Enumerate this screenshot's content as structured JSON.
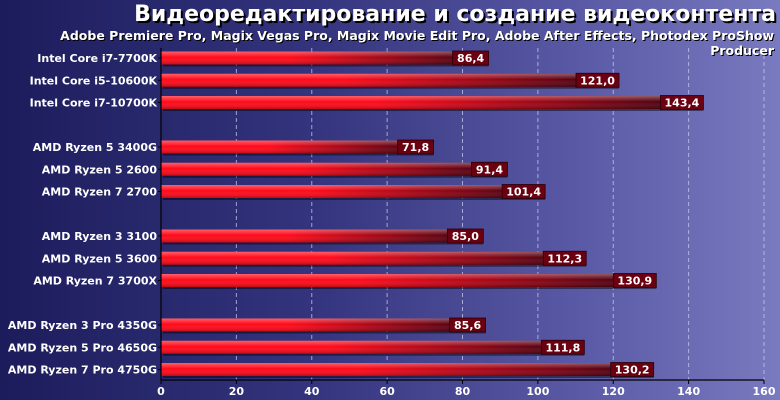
{
  "colors": {
    "bar_start": "#ff0a1a",
    "bar_end": "#3a0010",
    "label_box": "#6a0010",
    "grid": "#c8c8f0"
  },
  "chart_data": {
    "type": "bar",
    "orientation": "horizontal",
    "title": "Видеоредактирование и создание видеоконтента",
    "subtitle": "Adobe Premiere Pro, Magix Vegas Pro, Magix Movie Edit Pro, Adobe After Effects, Photodex ProShow Producer",
    "xlabel": "",
    "ylabel": "",
    "xlim": [
      0,
      160
    ],
    "x_ticks": [
      0,
      20,
      40,
      60,
      80,
      100,
      120,
      140,
      160
    ],
    "grid": "vertical dashed",
    "legend": "none",
    "groups": [
      {
        "categories": [
          "Intel Core i7-7700K",
          "Intel Core i5-10600K",
          "Intel Core i7-10700K"
        ],
        "values": [
          86.4,
          121.0,
          143.4
        ],
        "labels": [
          "86,4",
          "121,0",
          "143,4"
        ]
      },
      {
        "categories": [
          "AMD Ryzen 5 3400G",
          "AMD Ryzen 5 2600",
          "AMD Ryzen 7 2700"
        ],
        "values": [
          71.8,
          91.4,
          101.4
        ],
        "labels": [
          "71,8",
          "91,4",
          "101,4"
        ]
      },
      {
        "categories": [
          "AMD Ryzen 3 3100",
          "AMD Ryzen 5 3600",
          "AMD Ryzen 7 3700X"
        ],
        "values": [
          85.0,
          112.3,
          130.9
        ],
        "labels": [
          "85,0",
          "112,3",
          "130,9"
        ]
      },
      {
        "categories": [
          "AMD Ryzen 3 Pro 4350G",
          "AMD Ryzen 5 Pro 4650G",
          "AMD Ryzen 7 Pro 4750G"
        ],
        "values": [
          85.6,
          111.8,
          130.2
        ],
        "labels": [
          "85,6",
          "111,8",
          "130,2"
        ]
      }
    ]
  }
}
